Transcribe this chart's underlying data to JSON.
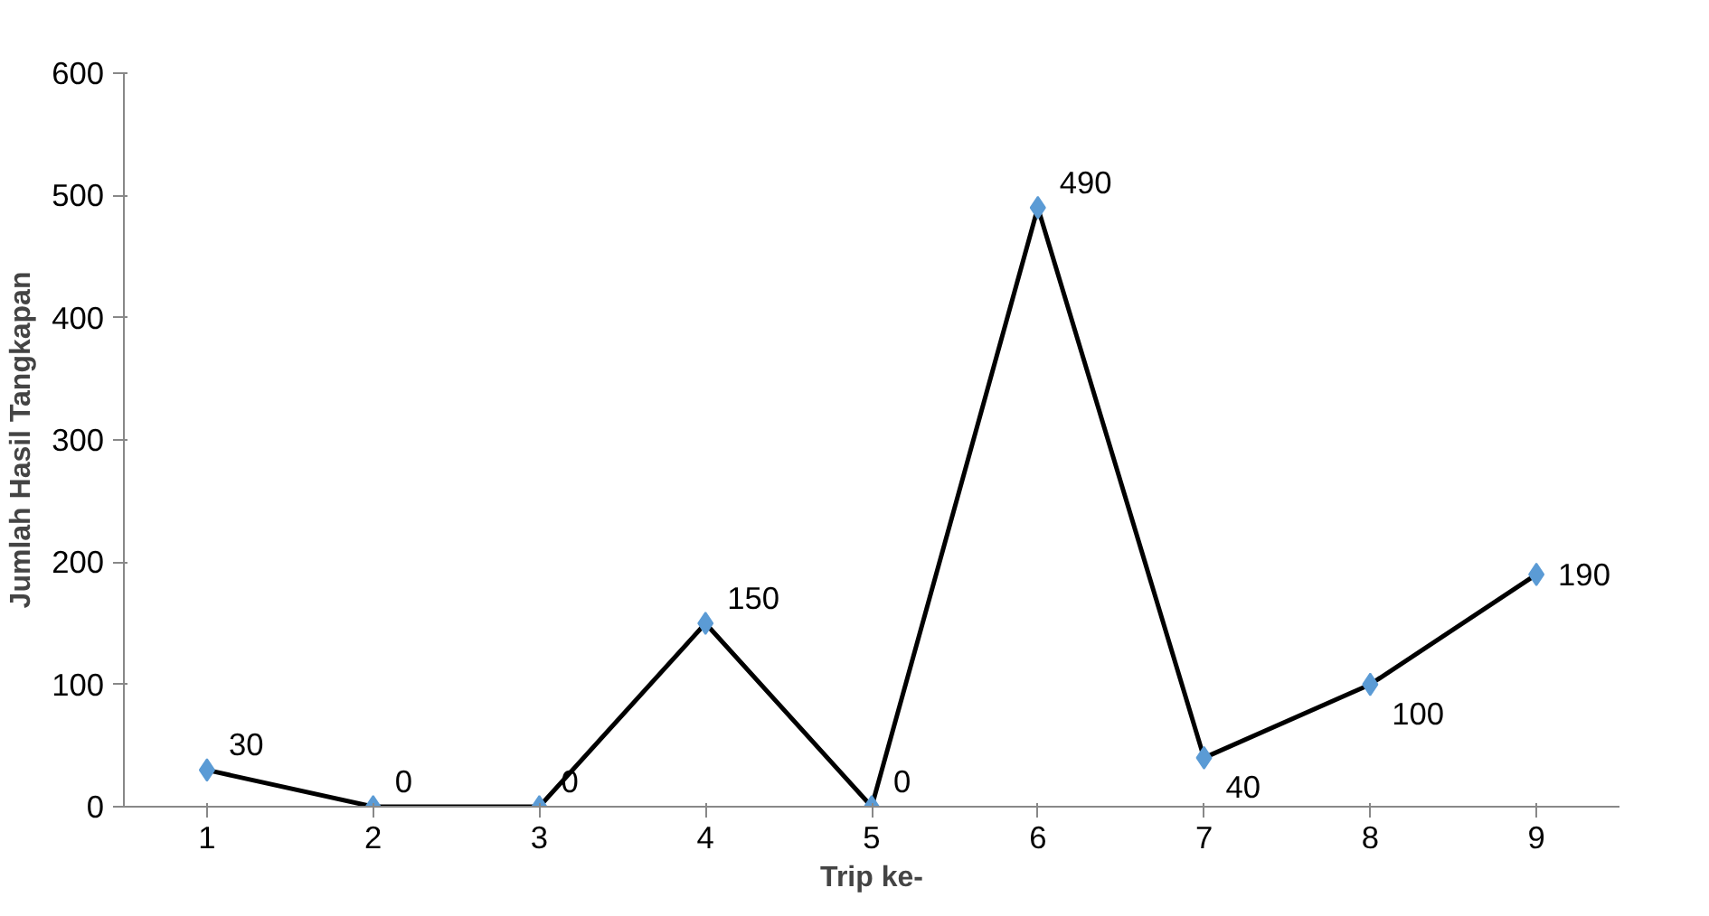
{
  "chart_data": {
    "type": "line",
    "xlabel": "Trip ke-",
    "ylabel": "Jumlah Hasil Tangkapan",
    "categories": [
      "1",
      "2",
      "3",
      "4",
      "5",
      "6",
      "7",
      "8",
      "9"
    ],
    "series": [
      {
        "color": "#000000",
        "colors": [
          "#5b9bd5",
          "#5b9bd5",
          "#5b9bd5",
          "#5b9bd5",
          "#5b9bd5",
          "#5b9bd5",
          "#5b9bd5",
          "#5b9bd5",
          "#5b9bd5"
        ],
        "values": [
          30,
          0,
          0,
          150,
          0,
          490,
          40,
          100,
          190
        ]
      }
    ],
    "ylim": [
      0,
      600
    ],
    "yticks": [
      0,
      100,
      200,
      300,
      400,
      500,
      600
    ],
    "grid": false,
    "marker": "diamond",
    "line_style": "solid",
    "data_labels": true
  }
}
